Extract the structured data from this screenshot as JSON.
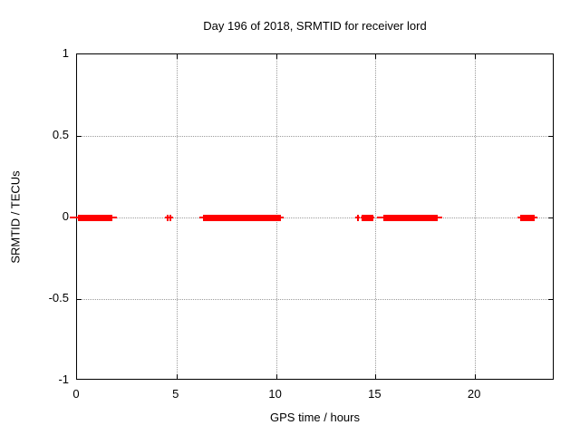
{
  "chart_data": {
    "type": "scatter",
    "title": "Day 196 of 2018, SRMTID for receiver lord",
    "xlabel": "GPS time / hours",
    "ylabel": "SRMTID / TECUs",
    "xlim": [
      0,
      24
    ],
    "ylim": [
      -1,
      1
    ],
    "grid": true,
    "legend_position": "none",
    "x_ticks": [
      {
        "value": 0,
        "label": "0"
      },
      {
        "value": 5,
        "label": "5"
      },
      {
        "value": 10,
        "label": "10"
      },
      {
        "value": 15,
        "label": "15"
      },
      {
        "value": 20,
        "label": "20"
      }
    ],
    "y_ticks": [
      {
        "value": 1,
        "label": "1"
      },
      {
        "value": 0.5,
        "label": "0.5"
      },
      {
        "value": 0,
        "label": "0"
      },
      {
        "value": -0.5,
        "label": "-0.5"
      },
      {
        "value": -1,
        "label": "-1"
      }
    ],
    "series": [
      {
        "name": "SRMTID",
        "color": "#ff0000",
        "baseline_y": 0,
        "description": "Dense clusters of points/error bars lying on y=0, shown as horizontal red bars with thin whisker ends",
        "segments_hours": [
          {
            "thin": [
              -0.37,
              2.02
            ],
            "thick": [
              0.05,
              1.79
            ]
          },
          {
            "thin": [
              4.42,
              4.62
            ],
            "thick": [
              4.5,
              4.58
            ]
          },
          {
            "thin": [
              4.6,
              4.82
            ],
            "thick": [
              4.66,
              4.74
            ]
          },
          {
            "thin": [
              6.15,
              10.38
            ],
            "thick": [
              6.33,
              10.23
            ]
          },
          {
            "thin": [
              14.0,
              14.22
            ],
            "thick": [
              14.06,
              14.16
            ]
          },
          {
            "thin": [
              14.24,
              14.95
            ],
            "thick": [
              14.31,
              14.9
            ]
          },
          {
            "thin": [
              15.08,
              18.35
            ],
            "thick": [
              15.38,
              18.13
            ]
          },
          {
            "thin": [
              22.12,
              23.15
            ],
            "thick": [
              22.28,
              23.0
            ]
          }
        ]
      }
    ]
  }
}
